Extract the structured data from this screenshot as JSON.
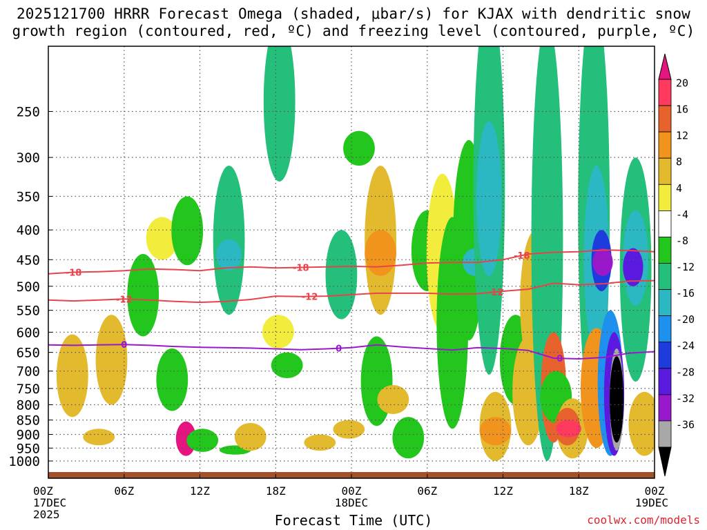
{
  "chart_data": {
    "type": "time-height cross-section (shaded + contoured)",
    "title": [
      "2025121700 HRRR Forecast Omega (shaded, μbar/s) for KJAX with dendritic snow",
      "growth region (contoured, red, ºC) and freezing level (contoured, purple, ºC)"
    ],
    "xlabel": "Forecast Time (UTC)",
    "ylabel": "",
    "credit": "coolwx.com/models",
    "x_ticks": [
      {
        "hour": 0,
        "lines": [
          "00Z",
          "17DEC",
          "2025"
        ]
      },
      {
        "hour": 6,
        "lines": [
          "06Z"
        ]
      },
      {
        "hour": 12,
        "lines": [
          "12Z"
        ]
      },
      {
        "hour": 18,
        "lines": [
          "18Z"
        ]
      },
      {
        "hour": 24,
        "lines": [
          "00Z",
          "18DEC"
        ]
      },
      {
        "hour": 30,
        "lines": [
          "06Z"
        ]
      },
      {
        "hour": 36,
        "lines": [
          "12Z"
        ]
      },
      {
        "hour": 42,
        "lines": [
          "18Z"
        ]
      },
      {
        "hour": 48,
        "lines": [
          "00Z",
          "19DEC"
        ]
      }
    ],
    "xlim_hours": [
      0,
      48
    ],
    "y_ticks_hpa": [
      250,
      300,
      350,
      400,
      450,
      500,
      550,
      600,
      650,
      700,
      750,
      800,
      850,
      900,
      950,
      1000
    ],
    "ylim_hpa": [
      200,
      1020
    ],
    "colorbar": {
      "labels": [
        "20",
        "16",
        "12",
        "8",
        "4",
        "-4",
        "-8",
        "-12",
        "-16",
        "-20",
        "-24",
        "-28",
        "-32",
        "-36"
      ],
      "colors": [
        "#ff3a5e",
        "#e8622e",
        "#f0941e",
        "#e3ba2e",
        "#f2ec3c",
        "#ffffff",
        "#22c61c",
        "#23bf7b",
        "#2bb8c2",
        "#1e90ee",
        "#1e3cde",
        "#5a1ae0",
        "#9a18cc",
        "#a8a8a8"
      ],
      "top_triangle_color": "#e6147e",
      "bottom_triangle_color": "#000000"
    },
    "contours": [
      {
        "name": "-18C",
        "color": "#e8424a",
        "label": "-18",
        "points": [
          [
            0,
            476
          ],
          [
            2,
            473
          ],
          [
            4,
            472
          ],
          [
            6,
            470
          ],
          [
            8,
            467
          ],
          [
            10,
            468
          ],
          [
            12,
            470
          ],
          [
            14,
            465
          ],
          [
            16,
            463
          ],
          [
            18,
            465
          ],
          [
            20,
            464
          ],
          [
            22,
            463
          ],
          [
            24,
            462
          ],
          [
            26,
            463
          ],
          [
            28,
            460
          ],
          [
            30,
            456
          ],
          [
            32,
            455
          ],
          [
            34,
            455
          ],
          [
            36,
            450
          ],
          [
            38,
            440
          ],
          [
            40,
            437
          ],
          [
            42,
            436
          ],
          [
            44,
            433
          ],
          [
            46,
            434
          ],
          [
            48,
            436
          ]
        ],
        "label_hours": [
          2,
          20,
          37.5
        ]
      },
      {
        "name": "-12C",
        "color": "#e8424a",
        "label": "-12",
        "points": [
          [
            0,
            528
          ],
          [
            2,
            530
          ],
          [
            4,
            528
          ],
          [
            6,
            526
          ],
          [
            8,
            528
          ],
          [
            10,
            531
          ],
          [
            12,
            533
          ],
          [
            14,
            531
          ],
          [
            16,
            527
          ],
          [
            18,
            520
          ],
          [
            20,
            521
          ],
          [
            22,
            520
          ],
          [
            24,
            517
          ],
          [
            26,
            514
          ],
          [
            28,
            514
          ],
          [
            30,
            514
          ],
          [
            32,
            516
          ],
          [
            34,
            515
          ],
          [
            36,
            510
          ],
          [
            38,
            506
          ],
          [
            40,
            494
          ],
          [
            42,
            497
          ],
          [
            44,
            495
          ],
          [
            46,
            490
          ],
          [
            48,
            489
          ]
        ],
        "label_hours": [
          6,
          20.7,
          35.4
        ]
      },
      {
        "name": "0C",
        "color": "#9a18cc",
        "label": "0",
        "points": [
          [
            0,
            631
          ],
          [
            2,
            632
          ],
          [
            4,
            631
          ],
          [
            6,
            630
          ],
          [
            8,
            632
          ],
          [
            10,
            635
          ],
          [
            12,
            637
          ],
          [
            14,
            638
          ],
          [
            16,
            639
          ],
          [
            18,
            641
          ],
          [
            20,
            643
          ],
          [
            22,
            641
          ],
          [
            24,
            638
          ],
          [
            26,
            631
          ],
          [
            28,
            636
          ],
          [
            30,
            640
          ],
          [
            32,
            644
          ],
          [
            34,
            638
          ],
          [
            36,
            640
          ],
          [
            38,
            645
          ],
          [
            40,
            665
          ],
          [
            42,
            667
          ],
          [
            44,
            663
          ],
          [
            46,
            652
          ],
          [
            48,
            648
          ]
        ],
        "label_hours": [
          6,
          23,
          40.5
        ]
      }
    ],
    "omega_features": [
      {
        "hour": 1.9,
        "p_top": 605,
        "p_bot": 840,
        "value": 4
      },
      {
        "hour": 4.0,
        "p_top": 880,
        "p_bot": 940,
        "value": 4
      },
      {
        "hour": 5.0,
        "p_top": 560,
        "p_bot": 800,
        "value": 6
      },
      {
        "hour": 7.5,
        "p_top": 440,
        "p_bot": 610,
        "value": -6
      },
      {
        "hour": 9.0,
        "p_top": 380,
        "p_bot": 450,
        "value": 3
      },
      {
        "hour": 9.8,
        "p_top": 640,
        "p_bot": 820,
        "value": -5
      },
      {
        "hour": 10.9,
        "p_top": 855,
        "p_bot": 980,
        "value": 20
      },
      {
        "hour": 11.0,
        "p_top": 350,
        "p_bot": 460,
        "value": -5
      },
      {
        "hour": 12.2,
        "p_top": 880,
        "p_bot": 965,
        "value": -5
      },
      {
        "hour": 14.3,
        "p_top": 310,
        "p_bot": 560,
        "value": -8
      },
      {
        "hour": 14.3,
        "p_top": 415,
        "p_bot": 470,
        "value": -13
      },
      {
        "hour": 14.8,
        "p_top": 940,
        "p_bot": 975,
        "value": -5
      },
      {
        "hour": 16.0,
        "p_top": 860,
        "p_bot": 960,
        "value": 5
      },
      {
        "hour": 18.3,
        "p_top": 175,
        "p_bot": 330,
        "value": -8
      },
      {
        "hour": 18.2,
        "p_top": 560,
        "p_bot": 640,
        "value": 3
      },
      {
        "hour": 18.9,
        "p_top": 650,
        "p_bot": 720,
        "value": -5
      },
      {
        "hour": 21.5,
        "p_top": 900,
        "p_bot": 960,
        "value": 4
      },
      {
        "hour": 23.2,
        "p_top": 400,
        "p_bot": 570,
        "value": -8
      },
      {
        "hour": 23.8,
        "p_top": 850,
        "p_bot": 915,
        "value": 4
      },
      {
        "hour": 24.6,
        "p_top": 270,
        "p_bot": 310,
        "value": -5
      },
      {
        "hour": 26.0,
        "p_top": 610,
        "p_bot": 870,
        "value": -7
      },
      {
        "hour": 26.3,
        "p_top": 310,
        "p_bot": 560,
        "value": 6
      },
      {
        "hour": 26.3,
        "p_top": 400,
        "p_bot": 480,
        "value": 10
      },
      {
        "hour": 27.3,
        "p_top": 740,
        "p_bot": 830,
        "value": 5
      },
      {
        "hour": 28.5,
        "p_top": 840,
        "p_bot": 990,
        "value": -6
      },
      {
        "hour": 30.0,
        "p_top": 370,
        "p_bot": 510,
        "value": -7
      },
      {
        "hour": 31.2,
        "p_top": 320,
        "p_bot": 600,
        "value": 3
      },
      {
        "hour": 32.0,
        "p_top": 380,
        "p_bot": 880,
        "value": -6
      },
      {
        "hour": 33.3,
        "p_top": 280,
        "p_bot": 620,
        "value": -6
      },
      {
        "hour": 33.8,
        "p_top": 430,
        "p_bot": 480,
        "value": -13
      },
      {
        "hour": 34.9,
        "p_top": 160,
        "p_bot": 710,
        "value": -8
      },
      {
        "hour": 34.9,
        "p_top": 260,
        "p_bot": 480,
        "value": -12
      },
      {
        "hour": 35.4,
        "p_top": 760,
        "p_bot": 1000,
        "value": 5
      },
      {
        "hour": 35.4,
        "p_top": 840,
        "p_bot": 940,
        "value": 11
      },
      {
        "hour": 37.0,
        "p_top": 560,
        "p_bot": 800,
        "value": -6
      },
      {
        "hour": 38.0,
        "p_top": 610,
        "p_bot": 940,
        "value": 4
      },
      {
        "hour": 38.6,
        "p_top": 400,
        "p_bot": 710,
        "value": 5
      },
      {
        "hour": 39.5,
        "p_top": 175,
        "p_bot": 1000,
        "value": -8
      },
      {
        "hour": 40.0,
        "p_top": 600,
        "p_bot": 930,
        "value": 12
      },
      {
        "hour": 40.2,
        "p_top": 700,
        "p_bot": 860,
        "value": -6
      },
      {
        "hour": 41.5,
        "p_top": 780,
        "p_bot": 990,
        "value": 5
      },
      {
        "hour": 41.1,
        "p_top": 810,
        "p_bot": 940,
        "value": 13
      },
      {
        "hour": 41.2,
        "p_top": 850,
        "p_bot": 910,
        "value": 17
      },
      {
        "hour": 43.2,
        "p_top": 160,
        "p_bot": 860,
        "value": -10
      },
      {
        "hour": 43.4,
        "p_top": 310,
        "p_bot": 650,
        "value": -13
      },
      {
        "hour": 43.8,
        "p_top": 400,
        "p_bot": 510,
        "value": -22
      },
      {
        "hour": 43.9,
        "p_top": 430,
        "p_bot": 480,
        "value": -28
      },
      {
        "hour": 43.4,
        "p_top": 590,
        "p_bot": 950,
        "value": 8
      },
      {
        "hour": 44.5,
        "p_top": 550,
        "p_bot": 980,
        "value": -18
      },
      {
        "hour": 44.8,
        "p_top": 600,
        "p_bot": 980,
        "value": -26
      },
      {
        "hour": 45.0,
        "p_top": 640,
        "p_bot": 960,
        "value": -32
      },
      {
        "hour": 45.0,
        "p_top": 660,
        "p_bot": 930,
        "value": -40
      },
      {
        "hour": 46.5,
        "p_top": 300,
        "p_bot": 730,
        "value": -8
      },
      {
        "hour": 46.5,
        "p_top": 370,
        "p_bot": 540,
        "value": -14
      },
      {
        "hour": 46.3,
        "p_top": 430,
        "p_bot": 500,
        "value": -26
      },
      {
        "hour": 47.2,
        "p_top": 760,
        "p_bot": 980,
        "value": 6
      }
    ]
  }
}
